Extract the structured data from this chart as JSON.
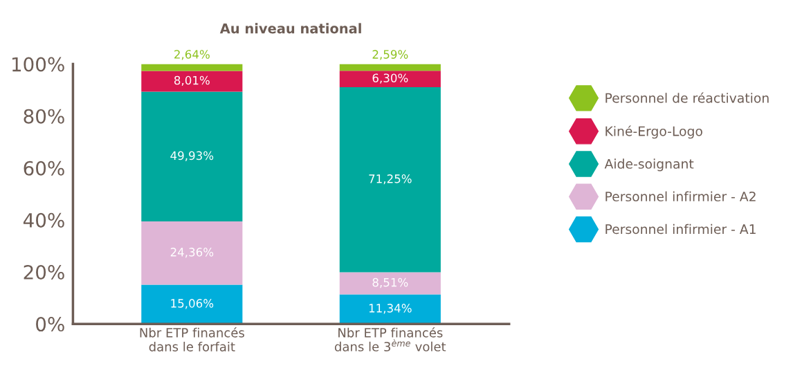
{
  "chart_data": {
    "type": "bar",
    "stacked": true,
    "title": "Au niveau national",
    "categories": [
      "Nbr ETP financés\ndans le forfait",
      "Nbr ETP financés\ndans le 3$^{ème}$ volet"
    ],
    "series": [
      {
        "name": "Personnel infirmier - A1",
        "color": "#00aedb",
        "values": [
          15.06,
          11.34
        ],
        "value_labels": [
          "15,06%",
          "11,34%"
        ]
      },
      {
        "name": "Personnel infirmier - A2",
        "color": "#dfb5d6",
        "values": [
          24.36,
          8.51
        ],
        "value_labels": [
          "24,36%",
          "8,51%"
        ]
      },
      {
        "name": "Aide-soignant",
        "color": "#00a99d",
        "values": [
          49.93,
          71.25
        ],
        "value_labels": [
          "49,93%",
          "71,25%"
        ]
      },
      {
        "name": "Kiné-Ergo-Logo",
        "color": "#d9184f",
        "values": [
          8.01,
          6.3
        ],
        "value_labels": [
          "8,01%",
          "6,30%"
        ]
      },
      {
        "name": "Personnel de réactivation",
        "color": "#8dc21f",
        "values": [
          2.64,
          2.59
        ],
        "value_labels": [
          "2,64%",
          "2,59%"
        ]
      }
    ],
    "ylim": [
      0,
      100
    ],
    "yticks": [
      {
        "value": 0,
        "label": "0%"
      },
      {
        "value": 20,
        "label": "20%"
      },
      {
        "value": 40,
        "label": "40%"
      },
      {
        "value": 60,
        "label": "60%"
      },
      {
        "value": 80,
        "label": "80%"
      },
      {
        "value": 100,
        "label": "100%"
      }
    ],
    "grid": false,
    "legend": "right",
    "marker": "hexagon"
  }
}
